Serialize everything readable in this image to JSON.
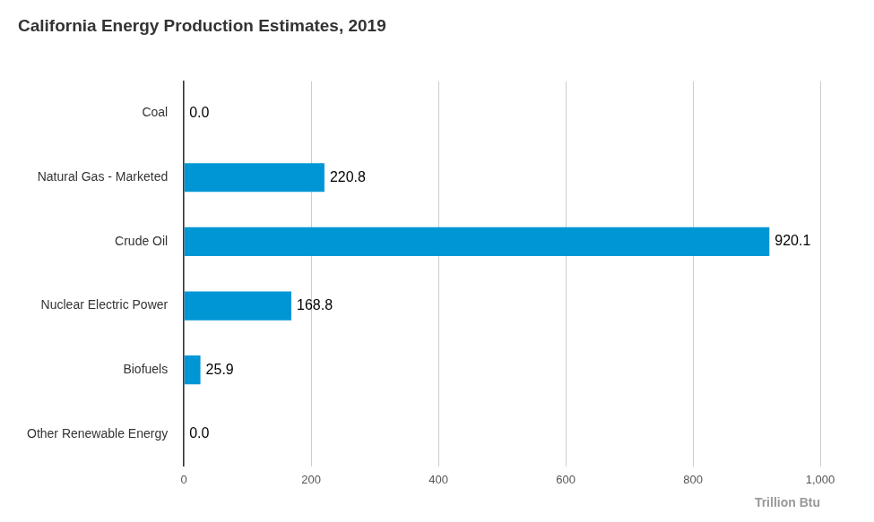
{
  "chart_data": {
    "type": "bar",
    "orientation": "horizontal",
    "title": "California Energy Production Estimates, 2019",
    "x_label": "Trillion Btu",
    "categories": [
      "Coal",
      "Natural Gas - Marketed",
      "Crude Oil",
      "Nuclear Electric Power",
      "Biofuels",
      "Other Renewable Energy"
    ],
    "values": [
      0,
      220.8,
      920.1,
      168.8,
      25.9,
      0
    ],
    "value_labels": [
      "0.0",
      "220.8",
      "920.1",
      "168.8",
      "25.9",
      "0.0"
    ],
    "color": "#0096d6",
    "xlim": [
      0,
      1000
    ],
    "xticks": [
      0,
      200,
      400,
      600,
      800,
      {
        "value": 1000,
        "label": "1,000"
      }
    ],
    "grid": true,
    "data_labels": true
  }
}
